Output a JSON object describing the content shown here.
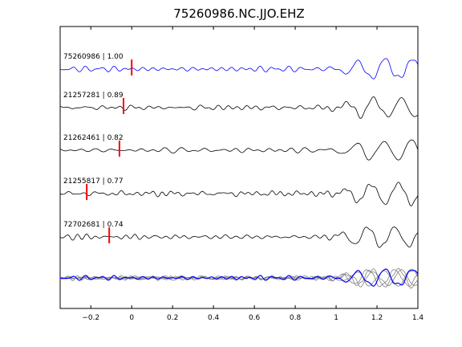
{
  "chart_data": {
    "type": "line",
    "title": "75260986.NC.JJO.EHZ",
    "xlabel": "",
    "ylabel": "",
    "xlim": [
      -0.35,
      1.4
    ],
    "xticks": [
      -0.2,
      0,
      0.2,
      0.4,
      0.6,
      0.8,
      1,
      1.2,
      1.4
    ],
    "xtick_labels": [
      "−0.2",
      "0",
      "0.2",
      "0.4",
      "0.6",
      "0.8",
      "1",
      "1.2",
      "1.4"
    ],
    "grid": false,
    "colors": {
      "reference": "#0000ff",
      "other": "#000000",
      "stack": "#808080",
      "pick": "#ff0000"
    },
    "traces": [
      {
        "label": "75260986 | 1.00",
        "pick_time": 0.0,
        "color": "#0000ff"
      },
      {
        "label": "21257281 | 0.89",
        "pick_time": -0.04,
        "color": "#000000"
      },
      {
        "label": "21262461 | 0.82",
        "pick_time": -0.06,
        "color": "#000000"
      },
      {
        "label": "21255817 | 0.77",
        "pick_time": -0.22,
        "color": "#000000"
      },
      {
        "label": "72702681 | 0.74",
        "pick_time": -0.11,
        "color": "#000000"
      }
    ],
    "stack": {
      "label": "",
      "colors": [
        "#808080",
        "#0000ff"
      ]
    }
  }
}
